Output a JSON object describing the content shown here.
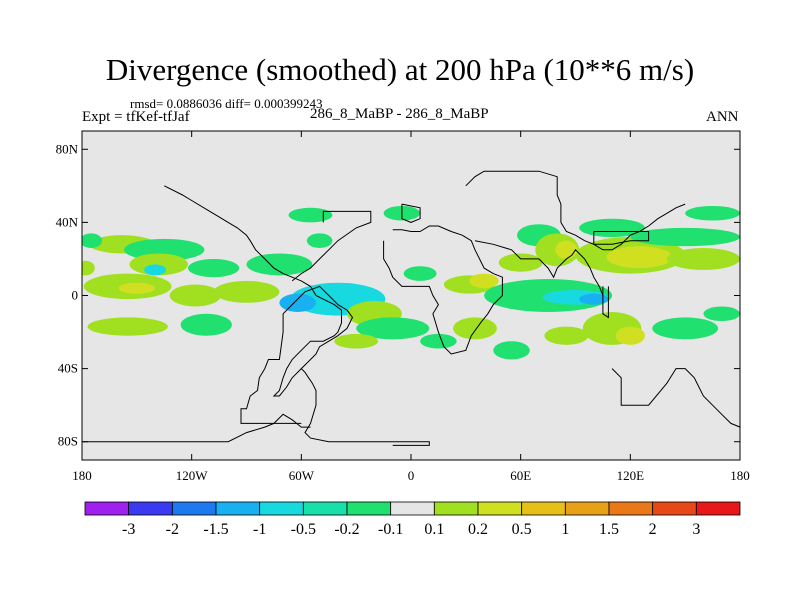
{
  "title": "Divergence (smoothed) at 200 hPa (10**6 m/s)",
  "stats": "rmsd= 0.0886036  diff= 0.000399243",
  "expt": "Expt = tfKef-tfJaf",
  "case": "286_8_MaBP - 286_8_MaBP",
  "season": "ANN",
  "map": {
    "lon_range": [
      -180,
      180
    ],
    "lat_range": [
      -90,
      90
    ],
    "background": "#e6e6e6",
    "lat_ticks": [
      {
        "value": 80,
        "label": "80N"
      },
      {
        "value": 40,
        "label": "40N"
      },
      {
        "value": 0,
        "label": "0"
      },
      {
        "value": -40,
        "label": "40S"
      },
      {
        "value": -80,
        "label": "80S"
      }
    ],
    "lon_ticks": [
      {
        "value": -180,
        "label": "180"
      },
      {
        "value": -120,
        "label": "120W"
      },
      {
        "value": -60,
        "label": "60W"
      },
      {
        "value": 0,
        "label": "0"
      },
      {
        "value": 60,
        "label": "60E"
      },
      {
        "value": 120,
        "label": "120E"
      },
      {
        "value": 180,
        "label": "180"
      }
    ]
  },
  "colorbar": {
    "colors": [
      "#a020f0",
      "#3a3af0",
      "#1e78f0",
      "#18b0f0",
      "#18d8e0",
      "#18e0a8",
      "#20e070",
      "#e6e6e6",
      "#a0e020",
      "#d0e020",
      "#e6c018",
      "#e8a018",
      "#e87818",
      "#e84818",
      "#e81818"
    ],
    "labels": [
      "-3",
      "-2",
      "-1.5",
      "-1",
      "-0.5",
      "-0.2",
      "-0.1",
      "0.1",
      "0.2",
      "0.5",
      "1",
      "1.5",
      "2",
      "3"
    ]
  },
  "field_blobs": [
    {
      "lon": -158,
      "lat": 28,
      "rx": 18,
      "ry": 5,
      "level": "0.2",
      "color": "#a0e020"
    },
    {
      "lon": -135,
      "lat": 25,
      "rx": 22,
      "ry": 6,
      "level": "-0.1",
      "color": "#20e070"
    },
    {
      "lon": -138,
      "lat": 17,
      "rx": 16,
      "ry": 6,
      "level": "0.2",
      "color": "#a0e020"
    },
    {
      "lon": -140,
      "lat": 14,
      "rx": 6,
      "ry": 3,
      "level": "-0.2",
      "color": "#18d8e0"
    },
    {
      "lon": -108,
      "lat": 15,
      "rx": 14,
      "ry": 5,
      "level": "-0.1",
      "color": "#20e070"
    },
    {
      "lon": -155,
      "lat": 5,
      "rx": 24,
      "ry": 7,
      "level": "0.2",
      "color": "#a0e020"
    },
    {
      "lon": -150,
      "lat": 4,
      "rx": 10,
      "ry": 3,
      "level": "0.5",
      "color": "#d0e020"
    },
    {
      "lon": -118,
      "lat": 0,
      "rx": 14,
      "ry": 6,
      "level": "0.2",
      "color": "#a0e020"
    },
    {
      "lon": -90,
      "lat": 2,
      "rx": 18,
      "ry": 6,
      "level": "0.2",
      "color": "#a0e020"
    },
    {
      "lon": -155,
      "lat": -17,
      "rx": 22,
      "ry": 5,
      "level": "0.2",
      "color": "#a0e020"
    },
    {
      "lon": -112,
      "lat": -16,
      "rx": 14,
      "ry": 6,
      "level": "-0.1",
      "color": "#20e070"
    },
    {
      "lon": -72,
      "lat": 17,
      "rx": 18,
      "ry": 6,
      "level": "-0.1",
      "color": "#20e070"
    },
    {
      "lon": -50,
      "lat": 30,
      "rx": 7,
      "ry": 4,
      "level": "-0.1",
      "color": "#20e070"
    },
    {
      "lon": -40,
      "lat": -2,
      "rx": 26,
      "ry": 9,
      "level": "-0.2",
      "color": "#18d8e0"
    },
    {
      "lon": -62,
      "lat": -4,
      "rx": 10,
      "ry": 5,
      "level": "-0.5",
      "color": "#18b0f0"
    },
    {
      "lon": -20,
      "lat": -10,
      "rx": 15,
      "ry": 7,
      "level": "0.2",
      "color": "#a0e020"
    },
    {
      "lon": -10,
      "lat": -18,
      "rx": 20,
      "ry": 6,
      "level": "-0.1",
      "color": "#20e070"
    },
    {
      "lon": -30,
      "lat": -25,
      "rx": 12,
      "ry": 4,
      "level": "0.2",
      "color": "#a0e020"
    },
    {
      "lon": -5,
      "lat": 45,
      "rx": 10,
      "ry": 4,
      "level": "-0.1",
      "color": "#20e070"
    },
    {
      "lon": -55,
      "lat": 44,
      "rx": 12,
      "ry": 4,
      "level": "-0.1",
      "color": "#20e070"
    },
    {
      "lon": 5,
      "lat": 12,
      "rx": 9,
      "ry": 4,
      "level": "-0.1",
      "color": "#20e070"
    },
    {
      "lon": 15,
      "lat": -25,
      "rx": 10,
      "ry": 4,
      "level": "-0.1",
      "color": "#20e070"
    },
    {
      "lon": 32,
      "lat": 6,
      "rx": 14,
      "ry": 5,
      "level": "0.2",
      "color": "#a0e020"
    },
    {
      "lon": 35,
      "lat": -18,
      "rx": 12,
      "ry": 6,
      "level": "0.2",
      "color": "#a0e020"
    },
    {
      "lon": 40,
      "lat": 8,
      "rx": 8,
      "ry": 4,
      "level": "0.5",
      "color": "#d0e020"
    },
    {
      "lon": 75,
      "lat": 0,
      "rx": 35,
      "ry": 9,
      "level": "-0.1",
      "color": "#20e070"
    },
    {
      "lon": 90,
      "lat": -1,
      "rx": 18,
      "ry": 4,
      "level": "-0.2",
      "color": "#18d8e0"
    },
    {
      "lon": 100,
      "lat": -2,
      "rx": 8,
      "ry": 3,
      "level": "-0.5",
      "color": "#18b0f0"
    },
    {
      "lon": 60,
      "lat": 18,
      "rx": 12,
      "ry": 5,
      "level": "0.2",
      "color": "#a0e020"
    },
    {
      "lon": 70,
      "lat": 33,
      "rx": 12,
      "ry": 6,
      "level": "-0.1",
      "color": "#20e070"
    },
    {
      "lon": 80,
      "lat": 25,
      "rx": 12,
      "ry": 9,
      "level": "0.2",
      "color": "#a0e020"
    },
    {
      "lon": 85,
      "lat": 25,
      "rx": 6,
      "ry": 5,
      "level": "0.5",
      "color": "#d0e020"
    },
    {
      "lon": 120,
      "lat": 22,
      "rx": 30,
      "ry": 10,
      "level": "0.2",
      "color": "#a0e020"
    },
    {
      "lon": 125,
      "lat": 21,
      "rx": 18,
      "ry": 6,
      "level": "0.5",
      "color": "#d0e020"
    },
    {
      "lon": 160,
      "lat": 20,
      "rx": 20,
      "ry": 6,
      "level": "0.2",
      "color": "#a0e020"
    },
    {
      "lon": 150,
      "lat": 32,
      "rx": 30,
      "ry": 5,
      "level": "-0.1",
      "color": "#20e070"
    },
    {
      "lon": 165,
      "lat": 45,
      "rx": 15,
      "ry": 4,
      "level": "-0.1",
      "color": "#20e070"
    },
    {
      "lon": 110,
      "lat": 37,
      "rx": 18,
      "ry": 5,
      "level": "-0.1",
      "color": "#20e070"
    },
    {
      "lon": 110,
      "lat": -18,
      "rx": 16,
      "ry": 9,
      "level": "0.2",
      "color": "#a0e020"
    },
    {
      "lon": 120,
      "lat": -22,
      "rx": 8,
      "ry": 5,
      "level": "0.5",
      "color": "#d0e020"
    },
    {
      "lon": 150,
      "lat": -18,
      "rx": 18,
      "ry": 6,
      "level": "-0.1",
      "color": "#20e070"
    },
    {
      "lon": 170,
      "lat": -10,
      "rx": 10,
      "ry": 4,
      "level": "-0.1",
      "color": "#20e070"
    },
    {
      "lon": 55,
      "lat": -30,
      "rx": 10,
      "ry": 5,
      "level": "-0.1",
      "color": "#20e070"
    },
    {
      "lon": 85,
      "lat": -22,
      "rx": 12,
      "ry": 5,
      "level": "0.2",
      "color": "#a0e020"
    },
    {
      "lon": -175,
      "lat": 30,
      "rx": 6,
      "ry": 4,
      "level": "-0.1",
      "color": "#20e070"
    },
    {
      "lon": -178,
      "lat": 15,
      "rx": 5,
      "ry": 4,
      "level": "0.2",
      "color": "#a0e020"
    }
  ],
  "continent_outlines": [
    {
      "name": "americas",
      "points": [
        [
          -60,
          -70
        ],
        [
          -65,
          -70
        ],
        [
          -75,
          -70
        ],
        [
          -85,
          -70
        ],
        [
          -93,
          -70
        ],
        [
          -93,
          -62
        ],
        [
          -90,
          -62
        ],
        [
          -88,
          -55
        ],
        [
          -84,
          -52
        ],
        [
          -83,
          -45
        ],
        [
          -80,
          -40
        ],
        [
          -78,
          -35
        ],
        [
          -72,
          -35
        ],
        [
          -70,
          -20
        ],
        [
          -70,
          -10
        ],
        [
          -65,
          -5
        ],
        [
          -58,
          2
        ],
        [
          -50,
          5
        ],
        [
          -45,
          0
        ],
        [
          -40,
          -5
        ],
        [
          -35,
          -8
        ],
        [
          -32,
          -12
        ],
        [
          -35,
          -18
        ],
        [
          -40,
          -22
        ],
        [
          -45,
          -25
        ],
        [
          -50,
          -28
        ],
        [
          -52,
          -32
        ],
        [
          -55,
          -35
        ],
        [
          -60,
          -40
        ],
        [
          -65,
          -45
        ],
        [
          -68,
          -50
        ],
        [
          -72,
          -55
        ],
        [
          -75,
          -55
        ],
        [
          -72,
          -52
        ],
        [
          -70,
          -45
        ],
        [
          -68,
          -40
        ],
        [
          -65,
          -35
        ],
        [
          -60,
          -30
        ],
        [
          -55,
          -25
        ],
        [
          -48,
          -25
        ],
        [
          -42,
          -22
        ],
        [
          -40,
          -20
        ],
        [
          -38,
          -15
        ],
        [
          -38,
          -8
        ],
        [
          -42,
          -5
        ],
        [
          -48,
          -2
        ],
        [
          -52,
          0
        ],
        [
          -55,
          5
        ],
        [
          -60,
          8
        ],
        [
          -65,
          10
        ],
        [
          -70,
          12
        ],
        [
          -75,
          15
        ],
        [
          -80,
          20
        ],
        [
          -85,
          25
        ],
        [
          -88,
          30
        ],
        [
          -90,
          33
        ],
        [
          -95,
          37
        ],
        [
          -100,
          40
        ],
        [
          -105,
          43
        ],
        [
          -110,
          46
        ],
        [
          -120,
          52
        ],
        [
          -125,
          55
        ],
        [
          -135,
          60
        ]
      ]
    },
    {
      "name": "north-america-east",
      "points": [
        [
          -48,
          40
        ],
        [
          -48,
          46
        ],
        [
          -40,
          46
        ],
        [
          -30,
          46
        ],
        [
          -22,
          46
        ],
        [
          -22,
          40
        ],
        [
          -30,
          37
        ],
        [
          -40,
          30
        ],
        [
          -45,
          25
        ],
        [
          -50,
          20
        ],
        [
          -55,
          15
        ],
        [
          -60,
          12
        ],
        [
          -65,
          8
        ]
      ]
    },
    {
      "name": "eurasia",
      "points": [
        [
          30,
          60
        ],
        [
          35,
          65
        ],
        [
          40,
          68
        ],
        [
          55,
          68
        ],
        [
          70,
          68
        ],
        [
          80,
          65
        ],
        [
          80,
          55
        ],
        [
          82,
          50
        ],
        [
          82,
          40
        ],
        [
          85,
          35
        ],
        [
          90,
          33
        ],
        [
          95,
          30
        ],
        [
          100,
          28
        ],
        [
          105,
          25
        ],
        [
          110,
          25
        ],
        [
          115,
          28
        ],
        [
          120,
          33
        ],
        [
          125,
          35
        ],
        [
          130,
          38
        ],
        [
          135,
          42
        ],
        [
          140,
          45
        ],
        [
          145,
          48
        ],
        [
          150,
          50
        ]
      ]
    },
    {
      "name": "africa",
      "points": [
        [
          -15,
          30
        ],
        [
          -15,
          20
        ],
        [
          -12,
          15
        ],
        [
          -10,
          10
        ],
        [
          -5,
          5
        ],
        [
          5,
          5
        ],
        [
          10,
          5
        ],
        [
          12,
          0
        ],
        [
          15,
          -5
        ],
        [
          12,
          -10
        ],
        [
          15,
          -20
        ],
        [
          18,
          -28
        ],
        [
          22,
          -32
        ],
        [
          30,
          -30
        ],
        [
          33,
          -22
        ],
        [
          38,
          -15
        ],
        [
          42,
          -10
        ],
        [
          45,
          -5
        ],
        [
          50,
          0
        ],
        [
          50,
          10
        ],
        [
          45,
          12
        ],
        [
          40,
          15
        ],
        [
          35,
          25
        ],
        [
          33,
          30
        ],
        [
          28,
          33
        ],
        [
          22,
          35
        ],
        [
          15,
          38
        ],
        [
          10,
          38
        ],
        [
          5,
          35
        ],
        [
          0,
          35
        ],
        [
          -5,
          36
        ],
        [
          -10,
          36
        ]
      ]
    },
    {
      "name": "middle-east-asia",
      "points": [
        [
          35,
          30
        ],
        [
          45,
          28
        ],
        [
          55,
          25
        ],
        [
          60,
          20
        ],
        [
          65,
          20
        ],
        [
          70,
          20
        ],
        [
          75,
          15
        ],
        [
          78,
          10
        ],
        [
          80,
          15
        ],
        [
          85,
          20
        ],
        [
          88,
          22
        ],
        [
          90,
          25
        ],
        [
          95,
          20
        ],
        [
          98,
          15
        ],
        [
          100,
          10
        ],
        [
          103,
          5
        ],
        [
          105,
          0
        ]
      ]
    },
    {
      "name": "australia-antarctica-rim",
      "points": [
        [
          110,
          -40
        ],
        [
          115,
          -45
        ],
        [
          115,
          -60
        ],
        [
          130,
          -60
        ],
        [
          140,
          -48
        ],
        [
          145,
          -40
        ],
        [
          150,
          -40
        ],
        [
          155,
          -45
        ],
        [
          160,
          -55
        ],
        [
          165,
          -60
        ],
        [
          170,
          -65
        ],
        [
          175,
          -70
        ],
        [
          180,
          -72
        ]
      ]
    },
    {
      "name": "antarctica-main",
      "points": [
        [
          -180,
          -80
        ],
        [
          -160,
          -80
        ],
        [
          -140,
          -80
        ],
        [
          -120,
          -80
        ],
        [
          -100,
          -80
        ],
        [
          -90,
          -75
        ],
        [
          -80,
          -72
        ],
        [
          -75,
          -70
        ],
        [
          -70,
          -65
        ],
        [
          -65,
          -68
        ],
        [
          -60,
          -72
        ],
        [
          -55,
          -72
        ]
      ]
    },
    {
      "name": "antarctic-peninsula",
      "points": [
        [
          -60,
          -40
        ],
        [
          -58,
          -42
        ],
        [
          -56,
          -45
        ],
        [
          -54,
          -48
        ],
        [
          -52,
          -52
        ],
        [
          -52,
          -60
        ],
        [
          -55,
          -70
        ],
        [
          -58,
          -75
        ],
        [
          -55,
          -78
        ],
        [
          -45,
          -80
        ],
        [
          -35,
          -80
        ],
        [
          -25,
          -80
        ],
        [
          -15,
          -80
        ],
        [
          -5,
          -80
        ],
        [
          10,
          -80
        ],
        [
          10,
          -82
        ],
        [
          -10,
          -82
        ]
      ]
    },
    {
      "name": "greenland-box",
      "points": [
        [
          -5,
          50
        ],
        [
          -5,
          42
        ],
        [
          0,
          40
        ],
        [
          5,
          42
        ],
        [
          5,
          48
        ],
        [
          -5,
          50
        ]
      ]
    },
    {
      "name": "japan-box",
      "points": [
        [
          100,
          35
        ],
        [
          100,
          28
        ],
        [
          110,
          28
        ],
        [
          120,
          30
        ],
        [
          130,
          30
        ],
        [
          130,
          35
        ],
        [
          120,
          35
        ],
        [
          110,
          35
        ],
        [
          100,
          35
        ]
      ]
    },
    {
      "name": "se-asia-box",
      "points": [
        [
          105,
          5
        ],
        [
          105,
          -10
        ],
        [
          108,
          -12
        ],
        [
          108,
          5
        ]
      ]
    }
  ]
}
